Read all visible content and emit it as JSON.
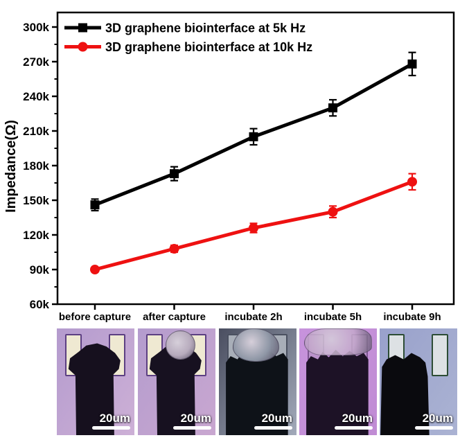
{
  "chart_data": {
    "type": "line",
    "title": "",
    "ylabel": "Impedance(Ω)",
    "value_units": "kΩ",
    "ylim": [
      60,
      300
    ],
    "ytick_step": 30,
    "ytick_labels": [
      "60k",
      "90k",
      "120k",
      "150k",
      "180k",
      "210k",
      "240k",
      "270k",
      "300k"
    ],
    "categories": [
      "before capture",
      "after capture",
      "incubate 2h",
      "incubate 5h",
      "incubate 9h"
    ],
    "series": [
      {
        "name": "3D graphene biointerface at 5k Hz",
        "color": "#000000",
        "marker": "square",
        "values": [
          146,
          173,
          205,
          230,
          268
        ],
        "errors": [
          5,
          6,
          7,
          7,
          10
        ]
      },
      {
        "name": "3D graphene biointerface at 10k Hz",
        "color": "#ee1111",
        "marker": "circle",
        "values": [
          90,
          108,
          126,
          140,
          166
        ],
        "errors": [
          2,
          3,
          4,
          5,
          7
        ]
      }
    ],
    "legend_position": "top-left",
    "grid": false
  },
  "photos": {
    "items": [
      {
        "id": "before-capture",
        "scale_label": "20um",
        "probe_style": "narrow",
        "cell_style": "",
        "bg_top": "#b49bce",
        "bg_bottom": "#cdb0d6",
        "probe": "#16101e",
        "pad_fill": "#efe9d2",
        "pad_border": "#5c3f82",
        "cell": "",
        "fringe": ""
      },
      {
        "id": "after-capture",
        "scale_label": "20um",
        "probe_style": "narrow",
        "cell_style": "round",
        "bg_top": "#b49cce",
        "bg_bottom": "#c9a7d0",
        "probe": "#171120",
        "pad_fill": "#efe9d2",
        "pad_border": "#5c3f82",
        "cell": "#b7abbd",
        "fringe": ""
      },
      {
        "id": "incubate-2h",
        "scale_label": "20um",
        "probe_style": "wide",
        "cell_style": "mass",
        "bg_top": "#4a4e60",
        "bg_bottom": "#a2aaba",
        "probe": "#0e1218",
        "pad_fill": "#a8aeb8",
        "pad_border": "#4a5060",
        "cell": "#8f97a6",
        "fringe": ""
      },
      {
        "id": "incubate-5h",
        "scale_label": "20um",
        "probe_style": "wide",
        "cell_style": "debris",
        "bg_top": "#c793dc",
        "bg_bottom": "#c08cd4",
        "probe": "#1d1226",
        "pad_fill": "#bb93cb",
        "pad_border": "#7c5490",
        "cell": "#c4a8cc",
        "fringe": "#c23848"
      },
      {
        "id": "incubate-9h",
        "scale_label": "20um",
        "probe_style": "left",
        "cell_style": "",
        "bg_top": "#99a1cb",
        "bg_bottom": "#abb3d3",
        "probe": "#0a0a0e",
        "pad_fill": "#dde1e4",
        "pad_border": "#2c4c34",
        "cell": "",
        "fringe": ""
      }
    ]
  }
}
